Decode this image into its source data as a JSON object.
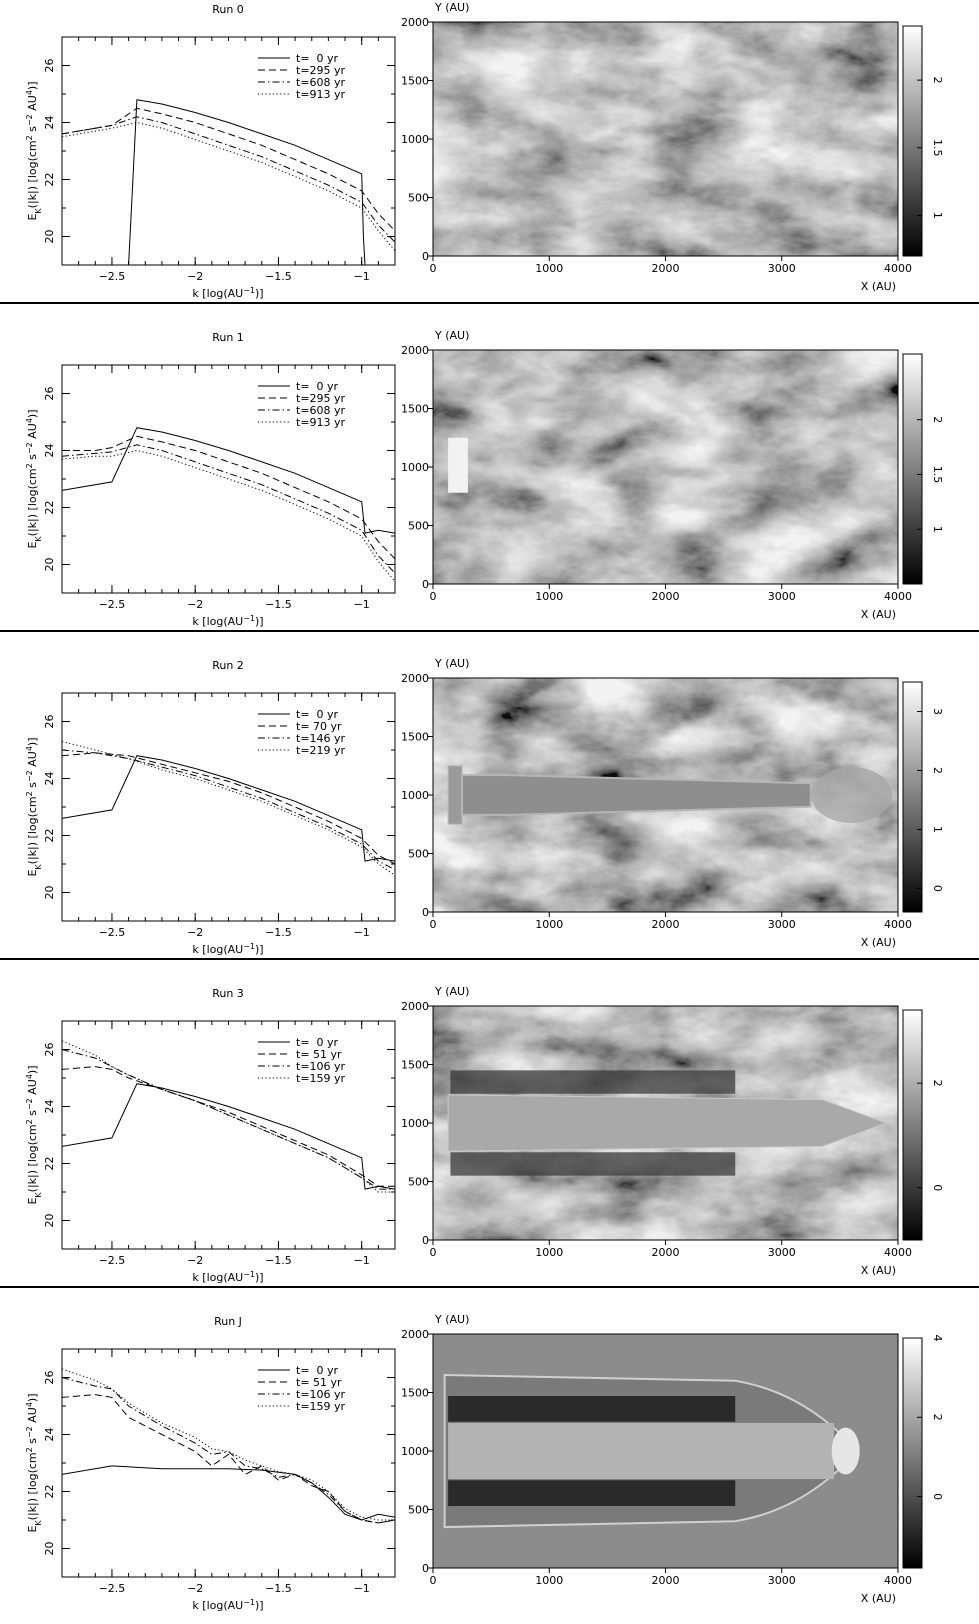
{
  "xaxis_label_parts": [
    "k [log(AU",
    "−1",
    ")]"
  ],
  "yaxis_label_parts": [
    "E",
    "K",
    "(|k|) [log(cm",
    "2",
    " s",
    "−2",
    " AU",
    "4",
    ")]"
  ],
  "map_axes": {
    "ylabel": "Y (AU)",
    "xlabel": "X (AU)"
  },
  "chart_data": [
    {
      "panel": "Run 0",
      "type": "line",
      "title": "Run 0",
      "xlim": [
        -2.8,
        -0.8
      ],
      "ylim": [
        19,
        27
      ],
      "xticks": [
        -2.5,
        -2,
        -1.5,
        -1
      ],
      "yticks": [
        20,
        22,
        24,
        26
      ],
      "legend_position": "top-right",
      "series": [
        {
          "name": "t=  0 yr",
          "style": "solid",
          "x": [
            -2.4,
            -2.35,
            -2.2,
            -2.0,
            -1.8,
            -1.6,
            -1.4,
            -1.2,
            -1.0,
            -0.99,
            -0.98
          ],
          "y": [
            19.0,
            24.8,
            24.65,
            24.35,
            24.0,
            23.6,
            23.2,
            22.7,
            22.2,
            20.0,
            19.0
          ]
        },
        {
          "name": "t=295 yr",
          "style": "dashed",
          "x": [
            -2.8,
            -2.6,
            -2.5,
            -2.35,
            -2.2,
            -2.0,
            -1.8,
            -1.6,
            -1.4,
            -1.2,
            -1.0,
            -0.9,
            -0.8
          ],
          "y": [
            23.6,
            23.8,
            23.9,
            24.5,
            24.3,
            24.0,
            23.6,
            23.2,
            22.7,
            22.2,
            21.6,
            20.8,
            20.2
          ]
        },
        {
          "name": "t=608 yr",
          "style": "dashdot",
          "x": [
            -2.8,
            -2.6,
            -2.5,
            -2.35,
            -2.2,
            -2.0,
            -1.8,
            -1.6,
            -1.4,
            -1.2,
            -1.0,
            -0.9,
            -0.8
          ],
          "y": [
            23.6,
            23.8,
            23.9,
            24.2,
            24.0,
            23.6,
            23.2,
            22.8,
            22.3,
            21.8,
            21.2,
            20.4,
            19.8
          ]
        },
        {
          "name": "t=913 yr",
          "style": "dotted",
          "x": [
            -2.8,
            -2.6,
            -2.5,
            -2.35,
            -2.2,
            -2.0,
            -1.8,
            -1.6,
            -1.4,
            -1.2,
            -1.0,
            -0.9,
            -0.8
          ],
          "y": [
            23.5,
            23.7,
            23.8,
            24.0,
            23.8,
            23.4,
            23.0,
            22.6,
            22.1,
            21.6,
            21.0,
            20.2,
            19.5
          ]
        }
      ],
      "map": {
        "xlim": [
          0,
          4000
        ],
        "ylim": [
          0,
          2000
        ],
        "xticks": [
          0,
          1000,
          2000,
          3000,
          4000
        ],
        "yticks": [
          0,
          500,
          1000,
          1500,
          2000
        ],
        "colorbar_range": [
          0.7,
          2.4
        ],
        "colorbar_ticks": [
          "1",
          "1.5",
          "2"
        ],
        "jet": false
      }
    },
    {
      "panel": "Run 1",
      "type": "line",
      "title": "Run 1",
      "xlim": [
        -2.8,
        -0.8
      ],
      "ylim": [
        19,
        27
      ],
      "xticks": [
        -2.5,
        -2,
        -1.5,
        -1
      ],
      "yticks": [
        20,
        22,
        24,
        26
      ],
      "legend_position": "top-right",
      "series": [
        {
          "name": "t=  0 yr",
          "style": "solid",
          "x": [
            -2.8,
            -2.5,
            -2.35,
            -2.2,
            -2.0,
            -1.8,
            -1.6,
            -1.4,
            -1.2,
            -1.0,
            -0.98,
            -0.9,
            -0.8
          ],
          "y": [
            22.6,
            22.9,
            24.8,
            24.65,
            24.35,
            24.0,
            23.6,
            23.2,
            22.7,
            22.2,
            21.1,
            21.2,
            21.1
          ]
        },
        {
          "name": "t=295 yr",
          "style": "dashed",
          "x": [
            -2.8,
            -2.6,
            -2.5,
            -2.35,
            -2.2,
            -2.0,
            -1.8,
            -1.6,
            -1.4,
            -1.2,
            -1.0,
            -0.9,
            -0.8
          ],
          "y": [
            24.0,
            24.0,
            24.1,
            24.5,
            24.3,
            24.0,
            23.6,
            23.2,
            22.7,
            22.2,
            21.6,
            20.8,
            20.2
          ]
        },
        {
          "name": "t=608 yr",
          "style": "dashdot",
          "x": [
            -2.8,
            -2.6,
            -2.5,
            -2.35,
            -2.2,
            -2.0,
            -1.8,
            -1.6,
            -1.4,
            -1.2,
            -1.0,
            -0.9,
            -0.8
          ],
          "y": [
            23.8,
            23.9,
            23.95,
            24.2,
            24.0,
            23.6,
            23.2,
            22.8,
            22.3,
            21.8,
            21.2,
            20.3,
            19.7
          ]
        },
        {
          "name": "t=913 yr",
          "style": "dotted",
          "x": [
            -2.8,
            -2.6,
            -2.5,
            -2.35,
            -2.2,
            -2.0,
            -1.8,
            -1.6,
            -1.4,
            -1.2,
            -1.0,
            -0.9,
            -0.8
          ],
          "y": [
            23.7,
            23.8,
            23.8,
            24.0,
            23.8,
            23.4,
            23.0,
            22.6,
            22.1,
            21.6,
            21.0,
            20.1,
            19.4
          ]
        }
      ],
      "map": {
        "xlim": [
          0,
          4000
        ],
        "ylim": [
          0,
          2000
        ],
        "xticks": [
          0,
          1000,
          2000,
          3000,
          4000
        ],
        "yticks": [
          0,
          500,
          1000,
          1500,
          2000
        ],
        "colorbar_range": [
          0.5,
          2.6
        ],
        "colorbar_ticks": [
          "1",
          "1.5",
          "2"
        ],
        "jet": "stub"
      }
    },
    {
      "panel": "Run 2",
      "type": "line",
      "title": "Run 2",
      "xlim": [
        -2.8,
        -0.8
      ],
      "ylim": [
        19,
        27
      ],
      "xticks": [
        -2.5,
        -2,
        -1.5,
        -1
      ],
      "yticks": [
        20,
        22,
        24,
        26
      ],
      "legend_position": "top-right",
      "series": [
        {
          "name": "t=  0 yr",
          "style": "solid",
          "x": [
            -2.8,
            -2.5,
            -2.35,
            -2.2,
            -2.0,
            -1.8,
            -1.6,
            -1.4,
            -1.2,
            -1.0,
            -0.98,
            -0.9,
            -0.8
          ],
          "y": [
            22.6,
            22.9,
            24.8,
            24.65,
            24.35,
            24.0,
            23.6,
            23.2,
            22.7,
            22.2,
            21.1,
            21.2,
            21.1
          ]
        },
        {
          "name": "t= 70 yr",
          "style": "dashed",
          "x": [
            -2.8,
            -2.6,
            -2.4,
            -2.2,
            -2.0,
            -1.8,
            -1.6,
            -1.4,
            -1.2,
            -1.0,
            -0.9,
            -0.8
          ],
          "y": [
            24.8,
            24.9,
            24.8,
            24.5,
            24.2,
            23.9,
            23.5,
            23.0,
            22.5,
            21.9,
            21.3,
            21.0
          ]
        },
        {
          "name": "t=146 yr",
          "style": "dashdot",
          "x": [
            -2.8,
            -2.6,
            -2.4,
            -2.2,
            -2.0,
            -1.8,
            -1.6,
            -1.4,
            -1.2,
            -1.0,
            -0.9,
            -0.8
          ],
          "y": [
            25.0,
            24.9,
            24.7,
            24.4,
            24.1,
            23.7,
            23.3,
            22.8,
            22.3,
            21.7,
            21.1,
            20.8
          ]
        },
        {
          "name": "t=219 yr",
          "style": "dotted",
          "x": [
            -2.8,
            -2.6,
            -2.4,
            -2.2,
            -2.0,
            -1.8,
            -1.6,
            -1.4,
            -1.2,
            -1.0,
            -0.9,
            -0.8
          ],
          "y": [
            25.3,
            25.0,
            24.7,
            24.3,
            24.0,
            23.6,
            23.2,
            22.7,
            22.2,
            21.6,
            21.0,
            20.6
          ]
        }
      ],
      "map": {
        "xlim": [
          0,
          4000
        ],
        "ylim": [
          0,
          2000
        ],
        "xticks": [
          0,
          1000,
          2000,
          3000,
          4000
        ],
        "yticks": [
          0,
          500,
          1000,
          1500,
          2000
        ],
        "colorbar_range": [
          -0.4,
          3.5
        ],
        "colorbar_ticks": [
          "0",
          "1",
          "2",
          "3"
        ],
        "jet": "long"
      }
    },
    {
      "panel": "Run 3",
      "type": "line",
      "title": "Run 3",
      "xlim": [
        -2.8,
        -0.8
      ],
      "ylim": [
        19,
        27
      ],
      "xticks": [
        -2.5,
        -2,
        -1.5,
        -1
      ],
      "yticks": [
        20,
        22,
        24,
        26
      ],
      "legend_position": "top-right",
      "series": [
        {
          "name": "t=  0 yr",
          "style": "solid",
          "x": [
            -2.8,
            -2.5,
            -2.35,
            -2.2,
            -2.0,
            -1.8,
            -1.6,
            -1.4,
            -1.2,
            -1.0,
            -0.98,
            -0.9,
            -0.8
          ],
          "y": [
            22.6,
            22.9,
            24.8,
            24.65,
            24.35,
            24.0,
            23.6,
            23.2,
            22.7,
            22.2,
            21.1,
            21.2,
            21.1
          ]
        },
        {
          "name": "t= 51 yr",
          "style": "dashed",
          "x": [
            -2.8,
            -2.6,
            -2.5,
            -2.4,
            -2.2,
            -2.0,
            -1.8,
            -1.6,
            -1.4,
            -1.2,
            -1.0,
            -0.9,
            -0.8
          ],
          "y": [
            25.3,
            25.4,
            25.3,
            25.0,
            24.6,
            24.2,
            23.8,
            23.3,
            22.8,
            22.3,
            21.6,
            21.2,
            21.2
          ]
        },
        {
          "name": "t=106 yr",
          "style": "dashdot",
          "x": [
            -2.8,
            -2.6,
            -2.5,
            -2.4,
            -2.2,
            -2.0,
            -1.8,
            -1.6,
            -1.4,
            -1.2,
            -1.0,
            -0.9,
            -0.8
          ],
          "y": [
            26.0,
            25.7,
            25.4,
            25.1,
            24.6,
            24.2,
            23.7,
            23.2,
            22.7,
            22.2,
            21.5,
            21.1,
            21.1
          ]
        },
        {
          "name": "t=159 yr",
          "style": "dotted",
          "x": [
            -2.8,
            -2.6,
            -2.5,
            -2.4,
            -2.2,
            -2.0,
            -1.8,
            -1.6,
            -1.4,
            -1.2,
            -1.0,
            -0.9,
            -0.8
          ],
          "y": [
            26.3,
            25.8,
            25.4,
            25.1,
            24.6,
            24.2,
            23.7,
            23.2,
            22.7,
            22.2,
            21.5,
            21.0,
            21.0
          ]
        }
      ],
      "map": {
        "xlim": [
          0,
          4000
        ],
        "ylim": [
          0,
          2000
        ],
        "xticks": [
          0,
          1000,
          2000,
          3000,
          4000
        ],
        "yticks": [
          0,
          500,
          1000,
          1500,
          2000
        ],
        "colorbar_range": [
          -1.0,
          3.4
        ],
        "colorbar_ticks": [
          "0",
          "2"
        ],
        "jet": "wide"
      }
    },
    {
      "panel": "Run J",
      "type": "line",
      "title": "Run J",
      "xlim": [
        -2.8,
        -0.8
      ],
      "ylim": [
        19,
        27
      ],
      "xticks": [
        -2.5,
        -2,
        -1.5,
        -1
      ],
      "yticks": [
        20,
        22,
        24,
        26
      ],
      "legend_position": "top-right",
      "series": [
        {
          "name": "t=  0 yr",
          "style": "solid",
          "x": [
            -2.8,
            -2.5,
            -2.2,
            -2.0,
            -1.8,
            -1.6,
            -1.4,
            -1.3,
            -1.2,
            -1.1,
            -1.0,
            -0.9,
            -0.8
          ],
          "y": [
            22.6,
            22.9,
            22.8,
            22.8,
            22.8,
            22.75,
            22.6,
            22.3,
            21.8,
            21.2,
            21.0,
            21.2,
            21.1
          ]
        },
        {
          "name": "t= 51 yr",
          "style": "dashed",
          "x": [
            -2.8,
            -2.6,
            -2.5,
            -2.4,
            -2.2,
            -2.0,
            -1.9,
            -1.8,
            -1.7,
            -1.6,
            -1.5,
            -1.4,
            -1.3,
            -1.2,
            -1.1,
            -1.0,
            -0.9,
            -0.8
          ],
          "y": [
            25.3,
            25.4,
            25.3,
            24.6,
            24.0,
            23.4,
            22.9,
            23.3,
            22.6,
            22.9,
            22.4,
            22.6,
            22.2,
            22.0,
            21.3,
            21.0,
            20.9,
            21.0
          ]
        },
        {
          "name": "t=106 yr",
          "style": "dashdot",
          "x": [
            -2.8,
            -2.6,
            -2.5,
            -2.4,
            -2.2,
            -2.0,
            -1.9,
            -1.8,
            -1.7,
            -1.6,
            -1.5,
            -1.4,
            -1.3,
            -1.2,
            -1.1,
            -1.0,
            -0.9,
            -0.8
          ],
          "y": [
            26.0,
            25.7,
            25.6,
            25.0,
            24.3,
            23.7,
            23.3,
            23.4,
            22.9,
            22.8,
            22.5,
            22.6,
            22.3,
            21.9,
            21.3,
            21.0,
            20.9,
            21.0
          ]
        },
        {
          "name": "t=159 yr",
          "style": "dotted",
          "x": [
            -2.8,
            -2.6,
            -2.5,
            -2.4,
            -2.2,
            -2.0,
            -1.9,
            -1.8,
            -1.7,
            -1.6,
            -1.5,
            -1.4,
            -1.3,
            -1.2,
            -1.1,
            -1.0,
            -0.9,
            -0.8
          ],
          "y": [
            26.3,
            25.9,
            25.6,
            25.1,
            24.4,
            23.9,
            23.5,
            23.4,
            23.1,
            22.9,
            22.7,
            22.6,
            22.4,
            22.0,
            21.4,
            21.1,
            21.0,
            21.0
          ]
        }
      ],
      "map": {
        "xlim": [
          0,
          4000
        ],
        "ylim": [
          0,
          2000
        ],
        "xticks": [
          0,
          1000,
          2000,
          3000,
          4000
        ],
        "yticks": [
          0,
          500,
          1000,
          1500,
          2000
        ],
        "colorbar_range": [
          -1.8,
          4.0
        ],
        "colorbar_ticks": [
          "0",
          "2",
          "4"
        ],
        "jet": "uniform"
      }
    }
  ]
}
